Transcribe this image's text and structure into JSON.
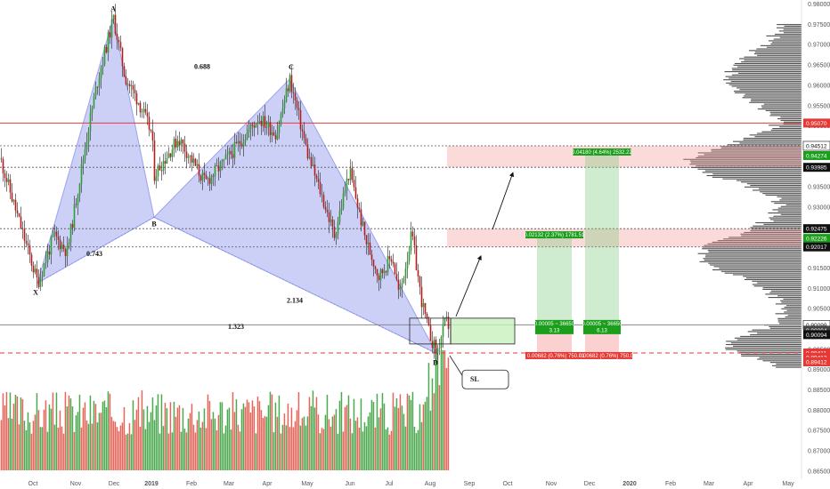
{
  "chart_data": {
    "type": "candlestick",
    "instrument_hint": "",
    "x_axis": {
      "tick_labels": [
        "Oct",
        "Nov",
        "Dec",
        "2019",
        "Feb",
        "Mar",
        "Apr",
        "May",
        "Jun",
        "Jul",
        "Aug",
        "Sep",
        "Oct",
        "Nov",
        "Dec",
        "2020",
        "Feb",
        "Mar",
        "Apr",
        "May"
      ]
    },
    "y_axis": {
      "ylim": [
        0.863,
        0.981
      ],
      "ticks": [
        0.865,
        0.87,
        0.875,
        0.88,
        0.885,
        0.89,
        0.895,
        0.9,
        0.905,
        0.91,
        0.915,
        0.92,
        0.925,
        0.93,
        0.935,
        0.94,
        0.945,
        0.95,
        0.955,
        0.96,
        0.965,
        0.97,
        0.975,
        0.98
      ],
      "tick_format_decimals": 5
    },
    "price_tags": [
      {
        "value": "0.95070",
        "bg": "#e53935",
        "fg": "#ffffff"
      },
      {
        "value": "0.94512",
        "bg": "#ffffff",
        "fg": "#111111",
        "border": "#111111"
      },
      {
        "value": "0.94274",
        "bg": "#1b9e1b",
        "fg": "#ffffff"
      },
      {
        "value": "0.93985",
        "bg": "#111111",
        "fg": "#ffffff"
      },
      {
        "value": "0.92475",
        "bg": "#111111",
        "fg": "#ffffff"
      },
      {
        "value": "0.92226",
        "bg": "#1b9e1b",
        "fg": "#ffffff"
      },
      {
        "value": "0.92017",
        "bg": "#111111",
        "fg": "#ffffff"
      },
      {
        "value": "0.90099",
        "bg": "#ffffff",
        "fg": "#111111",
        "border": "#111111"
      },
      {
        "value": "0.90094",
        "bg": "#444444",
        "fg": "#ffffff"
      },
      {
        "value": "0.90094",
        "bg": "#111111",
        "fg": "#ffffff"
      },
      {
        "value": "0.89411",
        "bg": "#e53935",
        "fg": "#ffffff"
      },
      {
        "value": "0.89412",
        "bg": "#e53935",
        "fg": "#ffffff"
      },
      {
        "value": "0.89412",
        "bg": "#e53935",
        "fg": "#ffffff"
      }
    ],
    "pattern_points": [
      {
        "label": "X",
        "value": 0.9113
      },
      {
        "label": "A",
        "value": 0.9765
      },
      {
        "label": "B",
        "value": 0.9275
      },
      {
        "label": "C",
        "value": 0.9615
      },
      {
        "label": "D",
        "value": 0.894
      }
    ],
    "ratio_labels": [
      "0.688",
      "0.743",
      "2.134",
      "1.323"
    ],
    "levels": [
      {
        "value": 0.9507,
        "style": "solid",
        "color": "#e53935"
      },
      {
        "value": 0.9451,
        "style": "dotted",
        "color": "#555555"
      },
      {
        "value": 0.9398,
        "style": "dotted",
        "color": "#555555"
      },
      {
        "value": 0.9247,
        "style": "dotted",
        "color": "#555555"
      },
      {
        "value": 0.9202,
        "style": "dotted",
        "color": "#555555"
      },
      {
        "value": 0.901,
        "style": "solid",
        "color": "#888888"
      },
      {
        "value": 0.8941,
        "style": "dashed",
        "color": "#e53935"
      }
    ],
    "zones": [
      {
        "kind": "resistance",
        "top": 0.9451,
        "bottom": 0.9398
      },
      {
        "kind": "resistance",
        "top": 0.9247,
        "bottom": 0.9202
      }
    ],
    "positions": [
      {
        "target_label": "0.02132 (2.37%) 1781.51",
        "entry_label_1": "0.00005 ~ 36650",
        "entry_label_2": "3.13",
        "stop_label": "0.00682 (0.76%) 750.01",
        "target": 0.9223
      },
      {
        "target_label": "0.04180 (4.64%) 2532.22",
        "entry_label_1": "0.00005 ~ 36650",
        "entry_label_2": "6.13",
        "stop_label": "0.00682 (0.76%) 750.01",
        "target": 0.9427
      }
    ],
    "entry_price": 0.9009,
    "stop_price": 0.8941,
    "callout_label": "SL",
    "grid": false,
    "legend": "none"
  }
}
